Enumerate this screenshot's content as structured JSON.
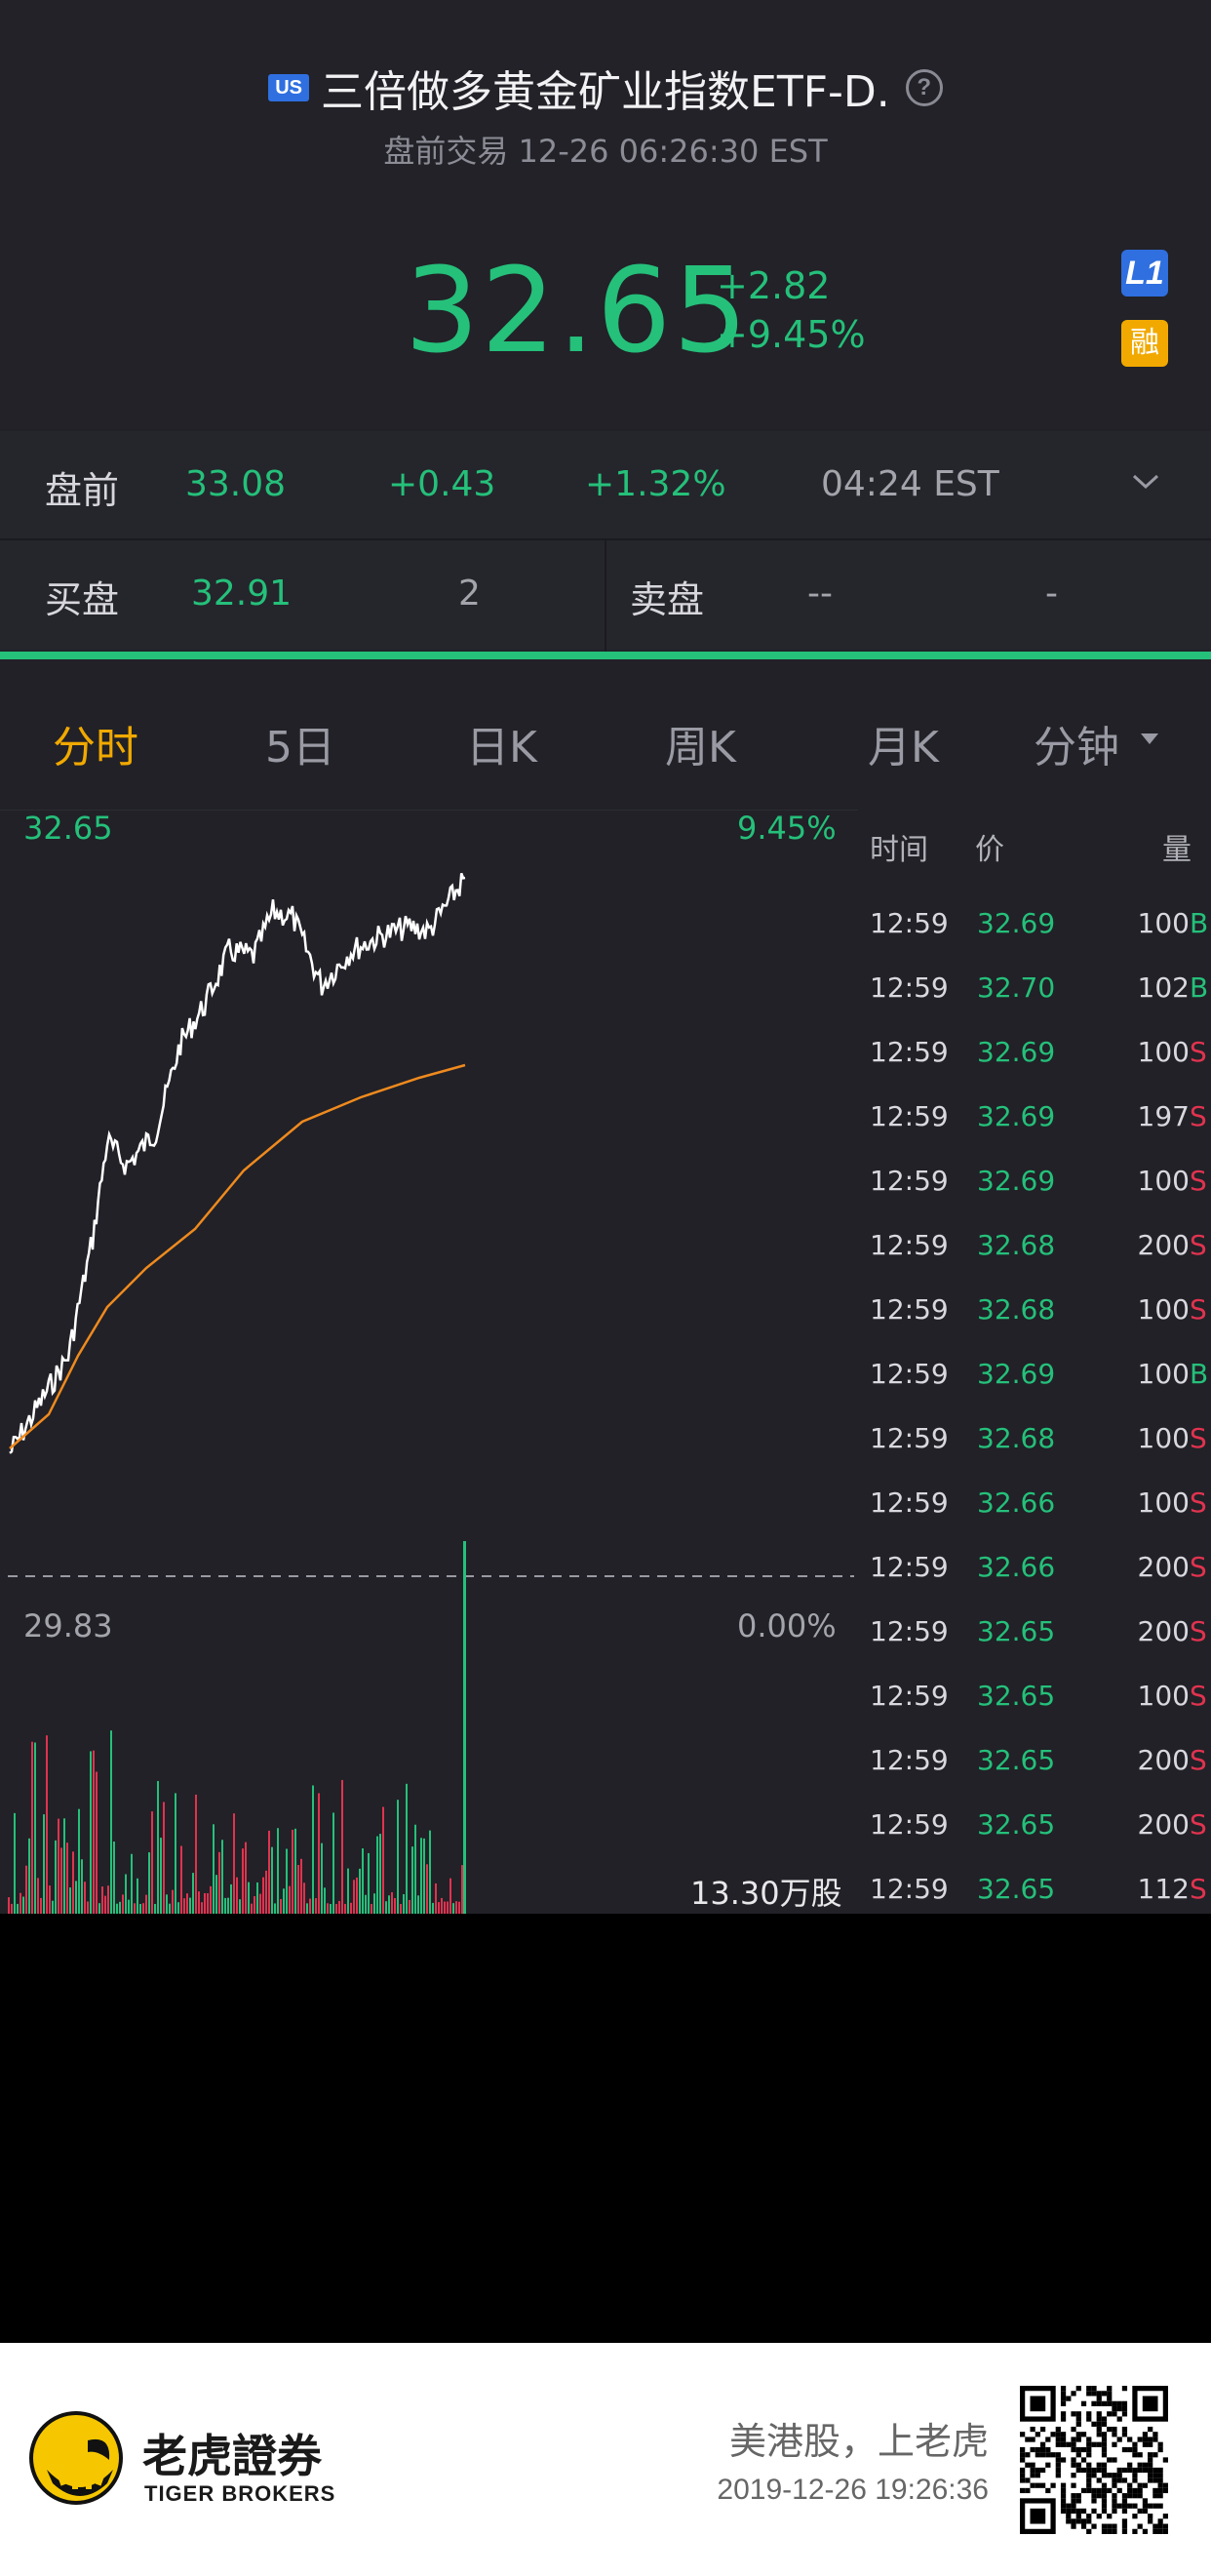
{
  "header": {
    "market_badge": "US",
    "stock_name": "三倍做多黄金矿业指数ETF-D.",
    "help_icon": "?",
    "subtitle": "盘前交易 12-26 06:26:30 EST",
    "price": "32.65",
    "change": "+2.82",
    "change_pct": "+9.45%",
    "l1_badge": "L1",
    "margin_badge": "融"
  },
  "premarket": {
    "label": "盘前",
    "price": "33.08",
    "change": "+0.43",
    "change_pct": "+1.32%",
    "time": "04:24 EST"
  },
  "bid_ask": {
    "bid_label": "买盘",
    "bid_price": "32.91",
    "bid_size": "2",
    "ask_label": "卖盘",
    "ask_price": "--",
    "ask_size": "-"
  },
  "tabs": [
    "分时",
    "5日",
    "日K",
    "周K",
    "月K",
    "分钟"
  ],
  "chart": {
    "top_price": "32.65",
    "top_pct": "9.45%",
    "base_price": "29.83",
    "base_pct": "0.00%",
    "volume_label": "13.30万股"
  },
  "trades": {
    "headers": [
      "时间",
      "价",
      "量"
    ],
    "rows": [
      {
        "time": "12:59",
        "price": "32.69",
        "vol": "100",
        "side": "B"
      },
      {
        "time": "12:59",
        "price": "32.70",
        "vol": "102",
        "side": "B"
      },
      {
        "time": "12:59",
        "price": "32.69",
        "vol": "100",
        "side": "S"
      },
      {
        "time": "12:59",
        "price": "32.69",
        "vol": "197",
        "side": "S"
      },
      {
        "time": "12:59",
        "price": "32.69",
        "vol": "100",
        "side": "S"
      },
      {
        "time": "12:59",
        "price": "32.68",
        "vol": "200",
        "side": "S"
      },
      {
        "time": "12:59",
        "price": "32.68",
        "vol": "100",
        "side": "S"
      },
      {
        "time": "12:59",
        "price": "32.69",
        "vol": "100",
        "side": "B"
      },
      {
        "time": "12:59",
        "price": "32.68",
        "vol": "100",
        "side": "S"
      },
      {
        "time": "12:59",
        "price": "32.66",
        "vol": "100",
        "side": "S"
      },
      {
        "time": "12:59",
        "price": "32.66",
        "vol": "200",
        "side": "S"
      },
      {
        "time": "12:59",
        "price": "32.65",
        "vol": "200",
        "side": "S"
      },
      {
        "time": "12:59",
        "price": "32.65",
        "vol": "100",
        "side": "S"
      },
      {
        "time": "12:59",
        "price": "32.65",
        "vol": "200",
        "side": "S"
      },
      {
        "time": "12:59",
        "price": "32.65",
        "vol": "200",
        "side": "S"
      },
      {
        "time": "12:59",
        "price": "32.65",
        "vol": "112",
        "side": "S"
      }
    ]
  },
  "footer": {
    "brand_cn": "老虎證券",
    "brand_en": "TIGER BROKERS",
    "slogan": "美港股，上老虎",
    "timestamp": "2019-12-26 19:26:36"
  },
  "colors": {
    "up": "#25c07a",
    "down": "#e0334f",
    "accent": "#f1a900",
    "avg_line": "#ef8a1e",
    "background": "#212127"
  }
}
